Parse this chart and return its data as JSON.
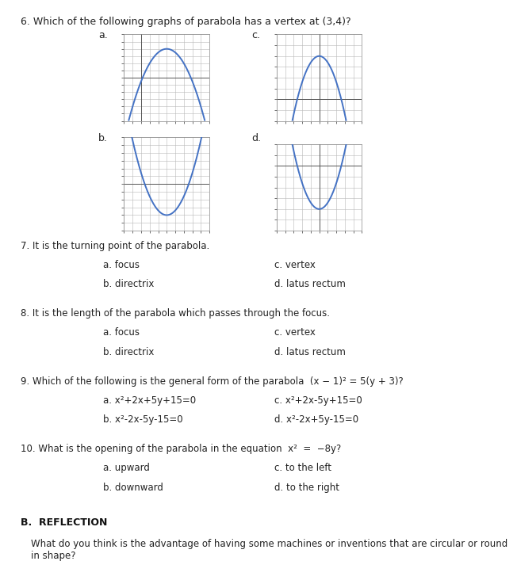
{
  "title_q6": "6. Which of the following graphs of parabola has a vertex at (3,4)?",
  "graph_labels": [
    "a.",
    "c.",
    "b.",
    "d."
  ],
  "q7_text": "7. It is the turning point of the parabola.",
  "q7_options": [
    [
      "a. focus",
      "c. vertex"
    ],
    [
      "b. directrix",
      "d. latus rectum"
    ]
  ],
  "q8_text": "8. It is the length of the parabola which passes through the focus.",
  "q8_options": [
    [
      "a. focus",
      "c. vertex"
    ],
    [
      "b. directrix",
      "d. latus rectum"
    ]
  ],
  "q9_prefix": "9. Which of the following is the general form of the parabola  ",
  "q9_formula": "(x − 1)² = 5(y + 3)?",
  "q9_options": [
    [
      "a. x²+2x+5y+15=0",
      "c. x²+2x-5y+15=0"
    ],
    [
      "b. x²-2x-5y-15=0",
      "d. x²-2x+5y-15=0"
    ]
  ],
  "q10_prefix": "10. What is the opening of the parabola in the equation  x²  =  −8y?",
  "q10_options": [
    [
      "a. upward",
      "c. to the left"
    ],
    [
      "b. downward",
      "d. to the right"
    ]
  ],
  "reflection_title": "B.  REFLECTION",
  "reflection_text": "What do you think is the advantage of having some machines or inventions that are circular or round\nin shape?",
  "curve_color": "#4472C4",
  "grid_color": "#b8b8b8",
  "bg_color": "#ffffff",
  "text_color": "#333333",
  "graphs": [
    {
      "label": "a.",
      "vertex": [
        3,
        4
      ],
      "a_coef": -1.0,
      "scale": 0.5,
      "xrange": [
        -2,
        8
      ],
      "yrange": [
        -6,
        6
      ],
      "x_axis_y": 0,
      "show_yaxis": true,
      "yaxis_x": 0
    },
    {
      "label": "c.",
      "vertex": [
        0,
        4
      ],
      "a_coef": -1.0,
      "scale": 0.6,
      "xrange": [
        -5,
        5
      ],
      "yrange": [
        -2,
        6
      ],
      "x_axis_y": 0,
      "show_yaxis": true,
      "yaxis_x": 0
    },
    {
      "label": "b.",
      "vertex": [
        3,
        -4
      ],
      "a_coef": 1.0,
      "scale": 0.6,
      "xrange": [
        -2,
        8
      ],
      "yrange": [
        -6,
        6
      ],
      "x_axis_y": 0,
      "show_yaxis": false,
      "yaxis_x": 0
    },
    {
      "label": "d.",
      "vertex": [
        0,
        -4
      ],
      "a_coef": 1.0,
      "scale": 0.6,
      "xrange": [
        -5,
        5
      ],
      "yrange": [
        -6,
        2
      ],
      "x_axis_y": 0,
      "show_yaxis": true,
      "yaxis_x": 0
    }
  ]
}
